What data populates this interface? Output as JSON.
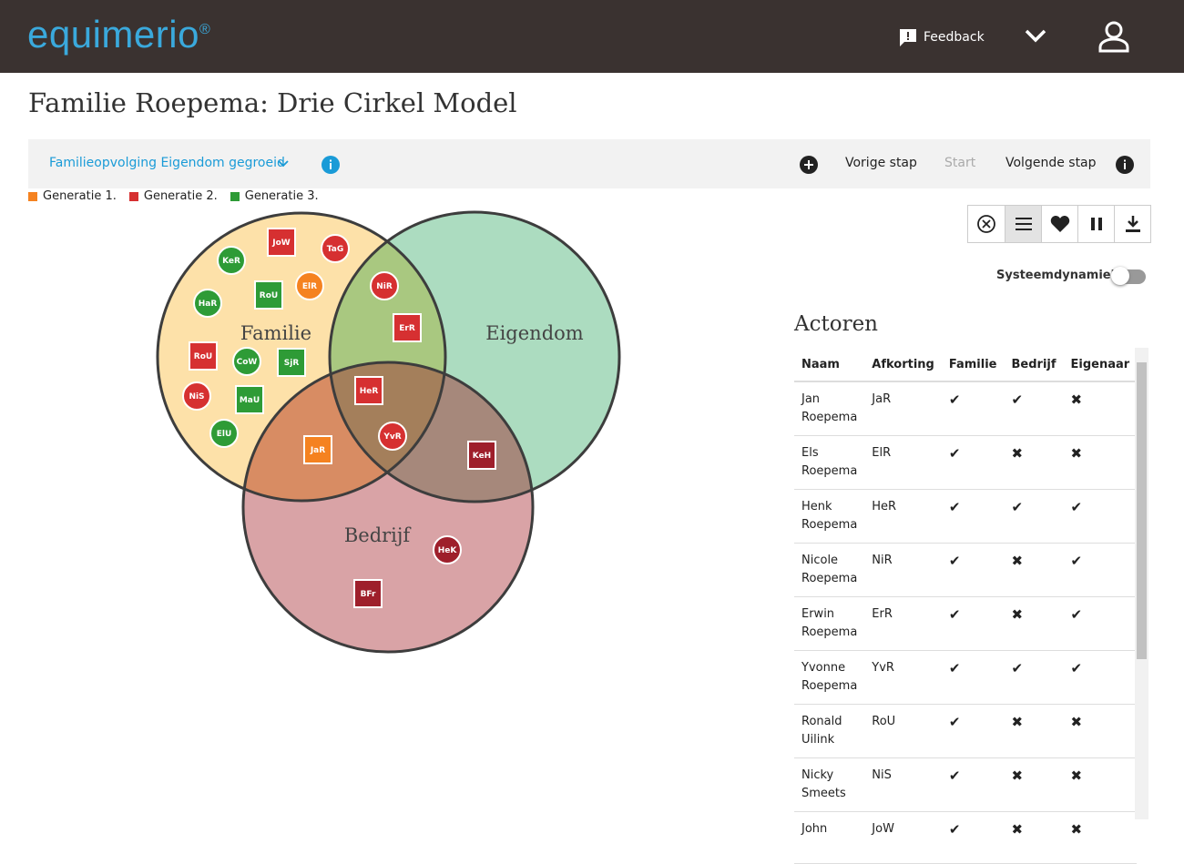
{
  "header": {
    "logo": "equimerio",
    "registered": "®",
    "feedback": "Feedback"
  },
  "title": "Familie Roepema: Drie Cirkel Model",
  "toolbar": {
    "scenario": "Familieopvolging Eigendom gegroeid",
    "previous": "Vorige stap",
    "start": "Start",
    "next": "Volgende stap"
  },
  "legend": [
    {
      "label": "Generatie 1.",
      "color": "#f58220"
    },
    {
      "label": "Generatie 2.",
      "color": "#d63031"
    },
    {
      "label": "Generatie 3.",
      "color": "#2e9b36"
    }
  ],
  "venn": {
    "circles": [
      {
        "label": "Familie",
        "color": "#fde1a9"
      },
      {
        "label": "Eigendom",
        "color": "#acdcc0"
      },
      {
        "label": "Bedrijf",
        "color": "#d9a3a6"
      }
    ],
    "overlaps": {
      "familie_eigendom": "#a9c880",
      "familie_bedrijf": "#d88c63",
      "eigendom_bedrijf": "#a6887b",
      "all": "#a47f5b"
    },
    "nodes": [
      {
        "label": "JoW",
        "shape": "square",
        "color": "#d63031"
      },
      {
        "label": "TaG",
        "shape": "circle",
        "color": "#d63031"
      },
      {
        "label": "KeR",
        "shape": "circle",
        "color": "#2e9b36"
      },
      {
        "label": "RoU",
        "shape": "square",
        "color": "#2e9b36"
      },
      {
        "label": "ElR",
        "shape": "circle",
        "color": "#f58220"
      },
      {
        "label": "HaR",
        "shape": "circle",
        "color": "#2e9b36"
      },
      {
        "label": "NiR",
        "shape": "circle",
        "color": "#d63031"
      },
      {
        "label": "ErR",
        "shape": "square",
        "color": "#d63031"
      },
      {
        "label": "RoU",
        "shape": "square",
        "color": "#d63031"
      },
      {
        "label": "CoW",
        "shape": "circle",
        "color": "#2e9b36"
      },
      {
        "label": "SjR",
        "shape": "square",
        "color": "#2e9b36"
      },
      {
        "label": "NiS",
        "shape": "circle",
        "color": "#d63031"
      },
      {
        "label": "MaU",
        "shape": "square",
        "color": "#2e9b36"
      },
      {
        "label": "HeR",
        "shape": "square",
        "color": "#d63031"
      },
      {
        "label": "ElU",
        "shape": "circle",
        "color": "#2e9b36"
      },
      {
        "label": "YvR",
        "shape": "circle",
        "color": "#d63031"
      },
      {
        "label": "JaR",
        "shape": "square",
        "color": "#f58220"
      },
      {
        "label": "KeH",
        "shape": "square",
        "color": "#9e1f2b"
      },
      {
        "label": "HeK",
        "shape": "circle",
        "color": "#9e1f2b"
      },
      {
        "label": "BFr",
        "shape": "square",
        "color": "#9e1f2b"
      }
    ]
  },
  "system_dynamics": "Systeemdynamiek",
  "actors": {
    "title": "Actoren",
    "columns": [
      "Naam",
      "Afkorting",
      "Familie",
      "Bedrijf",
      "Eigenaar"
    ],
    "rows": [
      [
        "Jan Roepema",
        "JaR",
        "✔",
        "✔",
        "✖"
      ],
      [
        "Els Roepema",
        "ElR",
        "✔",
        "✖",
        "✖"
      ],
      [
        "Henk Roepema",
        "HeR",
        "✔",
        "✔",
        "✔"
      ],
      [
        "Nicole Roepema",
        "NiR",
        "✔",
        "✖",
        "✔"
      ],
      [
        "Erwin Roepema",
        "ErR",
        "✔",
        "✖",
        "✔"
      ],
      [
        "Yvonne Roepema",
        "YvR",
        "✔",
        "✔",
        "✔"
      ],
      [
        "Ronald Uilink",
        "RoU",
        "✔",
        "✖",
        "✖"
      ],
      [
        "Nicky Smeets",
        "NiS",
        "✔",
        "✖",
        "✖"
      ],
      [
        "John",
        "JoW",
        "✔",
        "✖",
        "✖"
      ]
    ]
  }
}
